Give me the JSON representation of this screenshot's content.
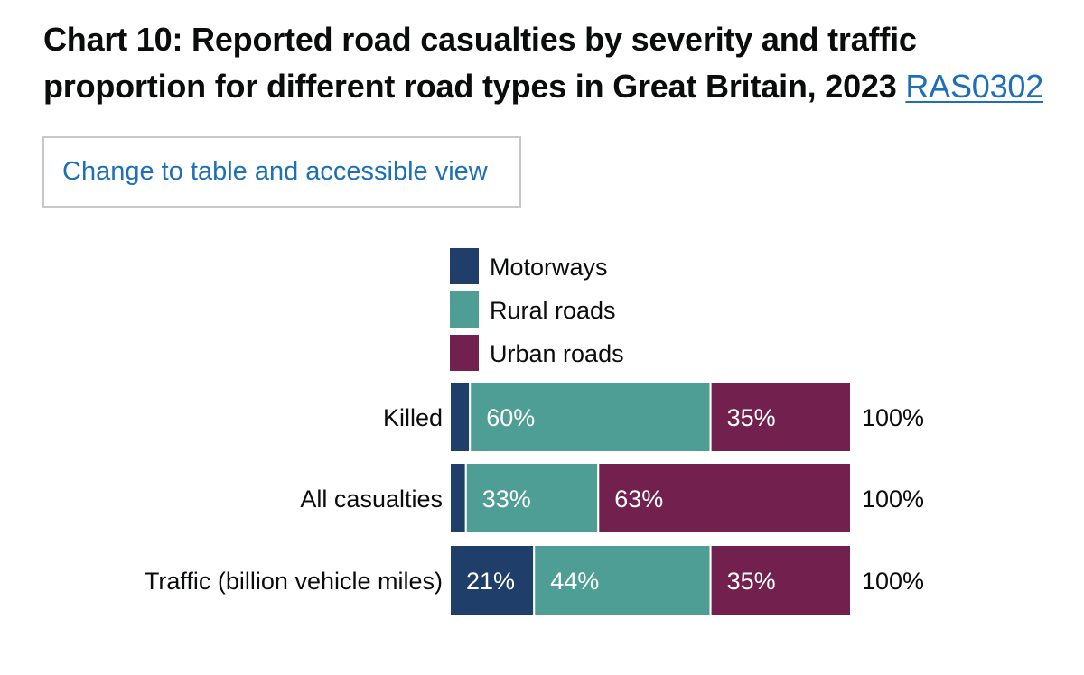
{
  "header": {
    "title": "Chart 10: Reported road casualties by severity and traffic proportion for different road types in Great Britain, 2023",
    "ref_link": "RAS0302"
  },
  "controls": {
    "toggle_view_label": "Change to table and accessible view"
  },
  "colors": {
    "Motorways": "#1f3f6a",
    "Rural roads": "#4f9e95",
    "Urban roads": "#72204d",
    "text": "#0b0c0c",
    "link": "#1d70b8"
  },
  "chart_data": {
    "type": "bar",
    "orientation": "horizontal",
    "stacked": true,
    "categories": [
      "Killed",
      "All casualties",
      "Traffic (billion vehicle miles)"
    ],
    "series": [
      {
        "name": "Motorways",
        "values": [
          5,
          4,
          21
        ],
        "labels": [
          "",
          "",
          "21%"
        ]
      },
      {
        "name": "Rural roads",
        "values": [
          60,
          33,
          44
        ],
        "labels": [
          "60%",
          "33%",
          "44%"
        ]
      },
      {
        "name": "Urban roads",
        "values": [
          35,
          63,
          35
        ],
        "labels": [
          "35%",
          "63%",
          "35%"
        ]
      }
    ],
    "totals": [
      "100%",
      "100%",
      "100%"
    ],
    "xlim": [
      0,
      100
    ],
    "legend_position": "top",
    "grid": false
  }
}
